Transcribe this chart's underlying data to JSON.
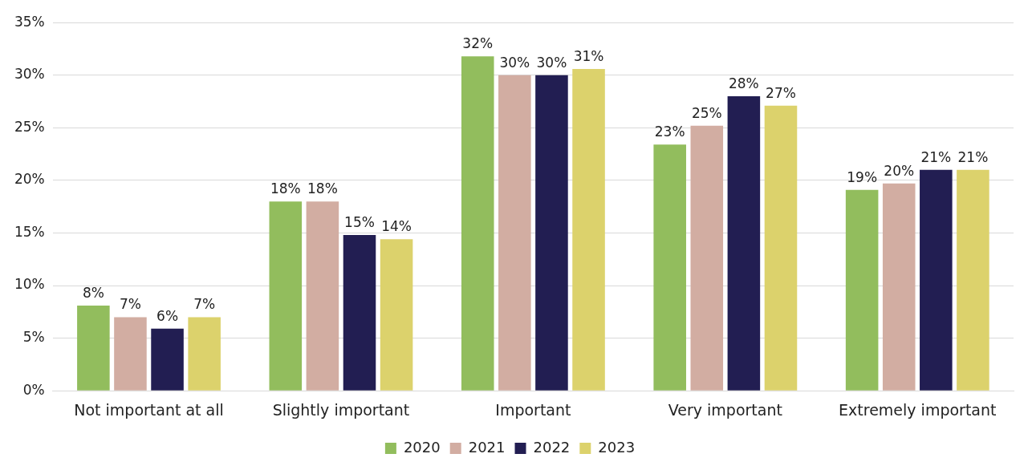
{
  "chart_data": {
    "type": "bar",
    "categories": [
      "Not important at all",
      "Slightly important",
      "Important",
      "Very important",
      "Extremely important"
    ],
    "series": [
      {
        "name": "2020",
        "color": "#92bd5d",
        "values": [
          8.1,
          18,
          31.8,
          23.4,
          19.1
        ],
        "value_labels": [
          "8%",
          "18%",
          "32%",
          "23%",
          "19%"
        ]
      },
      {
        "name": "2021",
        "color": "#d2ada2",
        "values": [
          7,
          18,
          30,
          25.2,
          19.7
        ],
        "value_labels": [
          "7%",
          "18%",
          "30%",
          "25%",
          "20%"
        ]
      },
      {
        "name": "2022",
        "color": "#221e52",
        "values": [
          5.9,
          14.8,
          30,
          28,
          21
        ],
        "value_labels": [
          "6%",
          "15%",
          "30%",
          "28%",
          "21%"
        ]
      },
      {
        "name": "2023",
        "color": "#dcd26c",
        "values": [
          7,
          14.4,
          30.6,
          27.1,
          21
        ],
        "value_labels": [
          "7%",
          "14%",
          "31%",
          "27%",
          "21%"
        ]
      }
    ],
    "ylim": [
      0,
      35
    ],
    "yticks": [
      {
        "value": 0,
        "label": "0%"
      },
      {
        "value": 5,
        "label": "5%"
      },
      {
        "value": 10,
        "label": "10%"
      },
      {
        "value": 15,
        "label": "15%"
      },
      {
        "value": 20,
        "label": "20%"
      },
      {
        "value": 25,
        "label": "25%"
      },
      {
        "value": 30,
        "label": "30%"
      },
      {
        "value": 35,
        "label": "35%"
      }
    ],
    "grid": "y",
    "legend": "bottom"
  }
}
